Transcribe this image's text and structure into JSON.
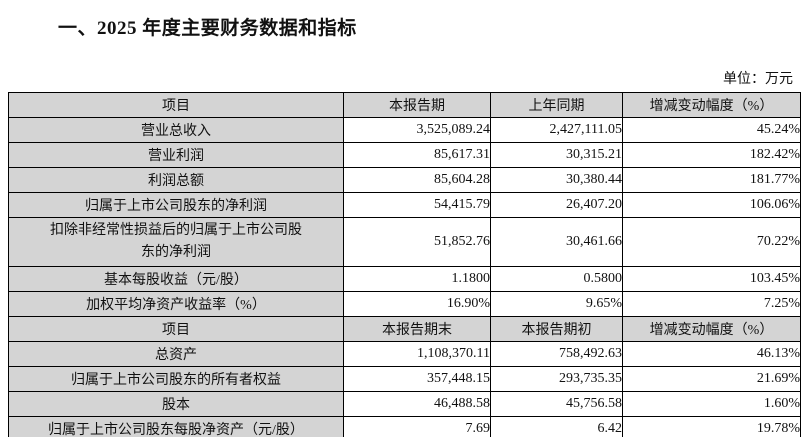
{
  "page": {
    "title": "一、2025 年度主要财务数据和指标",
    "unit_label": "单位：万元"
  },
  "colors": {
    "header_bg": "#d4d4d4",
    "border": "#000000",
    "text": "#111111"
  },
  "table": {
    "sections": [
      {
        "header": [
          "项目",
          "本报告期",
          "上年同期",
          "增减变动幅度（%）"
        ],
        "rows": [
          {
            "item": "营业总收入",
            "current": "3,525,089.24",
            "prior": "2,427,111.05",
            "change": "45.24%"
          },
          {
            "item": "营业利润",
            "current": "85,617.31",
            "prior": "30,315.21",
            "change": "182.42%"
          },
          {
            "item": "利润总额",
            "current": "85,604.28",
            "prior": "30,380.44",
            "change": "181.77%"
          },
          {
            "item": "归属于上市公司股东的净利润",
            "current": "54,415.79",
            "prior": "26,407.20",
            "change": "106.06%"
          },
          {
            "item": "扣除非经常性损益后的归属于上市公司股东的净利润",
            "current": "51,852.76",
            "prior": "30,461.66",
            "change": "70.22%"
          },
          {
            "item": "基本每股收益（元/股）",
            "current": "1.1800",
            "prior": "0.5800",
            "change": "103.45%"
          },
          {
            "item": "加权平均净资产收益率（%）",
            "current": "16.90%",
            "prior": "9.65%",
            "change": "7.25%"
          }
        ]
      },
      {
        "header": [
          "项目",
          "本报告期末",
          "本报告期初",
          "增减变动幅度（%）"
        ],
        "rows": [
          {
            "item": "总资产",
            "current": "1,108,370.11",
            "prior": "758,492.63",
            "change": "46.13%"
          },
          {
            "item": "归属于上市公司股东的所有者权益",
            "current": "357,448.15",
            "prior": "293,735.35",
            "change": "21.69%"
          },
          {
            "item": "股本",
            "current": "46,488.58",
            "prior": "45,756.58",
            "change": "1.60%"
          },
          {
            "item": "归属于上市公司股东每股净资产（元/股）",
            "current": "7.69",
            "prior": "6.42",
            "change": "19.78%"
          }
        ]
      }
    ]
  }
}
